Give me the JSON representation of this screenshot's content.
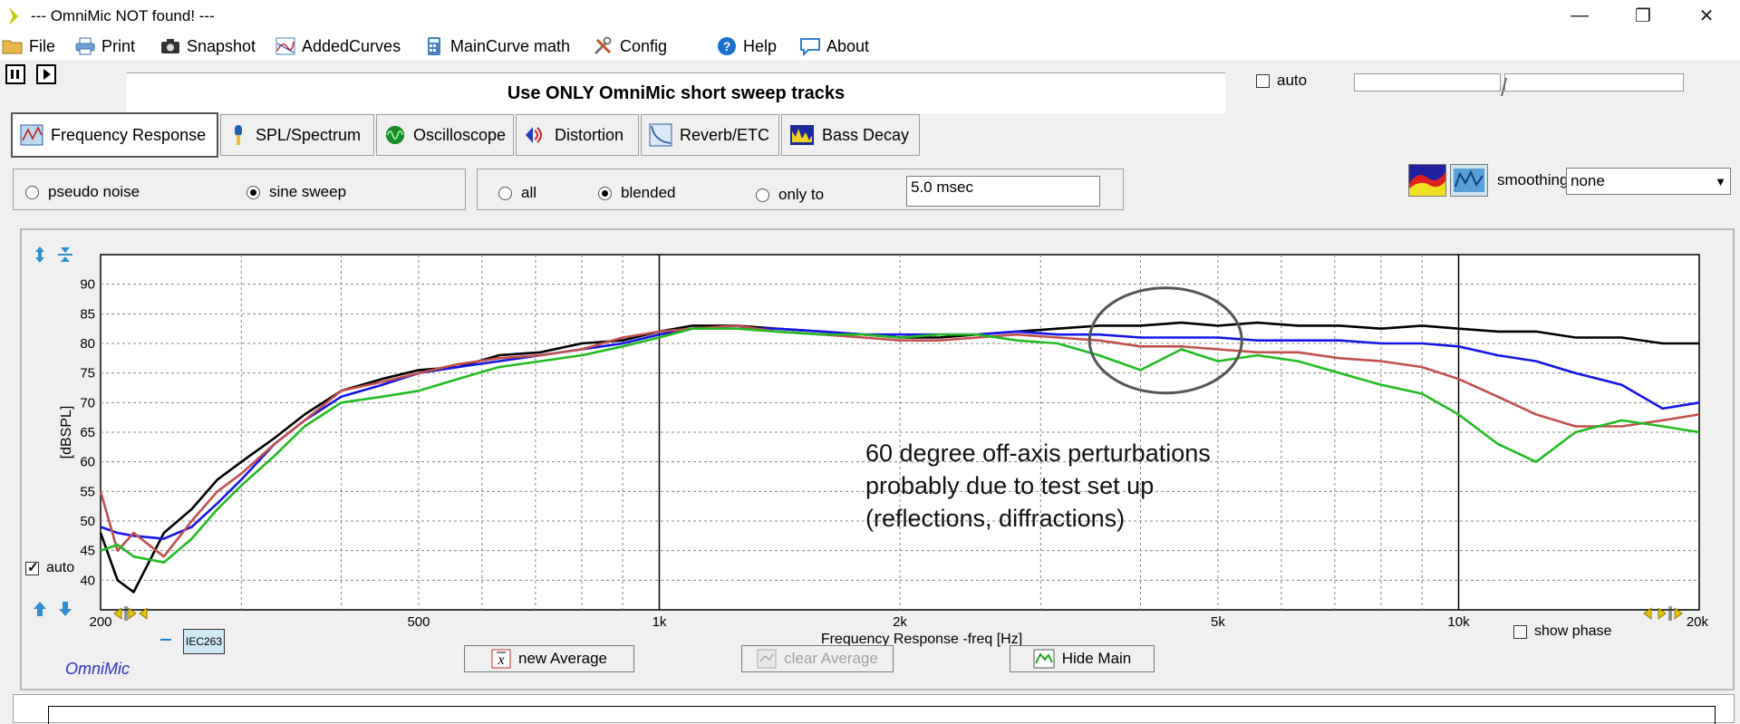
{
  "window": {
    "title": "--- OmniMic NOT found! ---"
  },
  "menu": [
    {
      "label": "File",
      "icon": "folder-icon"
    },
    {
      "label": "Print",
      "icon": "printer-icon"
    },
    {
      "label": "Snapshot",
      "icon": "camera-icon"
    },
    {
      "label": "AddedCurves",
      "icon": "curves-icon"
    },
    {
      "label": "MainCurve math",
      "icon": "calculator-icon"
    },
    {
      "label": "Config",
      "icon": "tools-icon"
    },
    {
      "label": "Help",
      "icon": "help-icon"
    },
    {
      "label": "About",
      "icon": "speech-bubble-icon"
    }
  ],
  "message": "Use ONLY OmniMic short sweep tracks",
  "top_auto_label": "auto",
  "tabs": [
    {
      "label": "Frequency Response",
      "active": true
    },
    {
      "label": "SPL/Spectrum"
    },
    {
      "label": "Oscilloscope"
    },
    {
      "label": "Distortion"
    },
    {
      "label": "Reverb/ETC"
    },
    {
      "label": "Bass Decay"
    }
  ],
  "signal": {
    "pseudo_noise": "pseudo noise",
    "sine_sweep": "sine sweep",
    "selected": "sine sweep"
  },
  "window_mode": {
    "all": "all",
    "blended": "blended",
    "only_to": "only to",
    "selected": "blended",
    "msec_value": "5.0 msec"
  },
  "smoothing": {
    "label": "smoothing",
    "value": "none"
  },
  "chart_panel": {
    "auto_label": "auto",
    "show_phase_label": "show phase",
    "legend_tag": "IEC263",
    "brand": "OmniMic",
    "buttons": {
      "new_average": "new Average",
      "clear_average": "clear Average",
      "hide_main": "Hide Main"
    }
  },
  "chart_data": {
    "type": "line",
    "xlabel": "Frequency Response -freq [Hz]",
    "ylabel": "[dBSPL]",
    "x_scale": "log",
    "xlim": [
      200,
      20000
    ],
    "ylim": [
      35,
      95
    ],
    "x_ticks": [
      {
        "value": 200,
        "label": "200"
      },
      {
        "value": 500,
        "label": "500"
      },
      {
        "value": 1000,
        "label": "1k"
      },
      {
        "value": 2000,
        "label": "2k"
      },
      {
        "value": 5000,
        "label": "5k"
      },
      {
        "value": 10000,
        "label": "10k"
      },
      {
        "value": 20000,
        "label": "20k"
      }
    ],
    "y_ticks": [
      40,
      45,
      50,
      55,
      60,
      65,
      70,
      75,
      80,
      85,
      90
    ],
    "grid": true,
    "annotation": [
      "60 degree off-axis perturbations",
      "probably due to test set up",
      "(reflections, diffractions)"
    ],
    "series": [
      {
        "color": "#000000",
        "x": [
          200,
          210,
          220,
          240,
          260,
          280,
          300,
          330,
          360,
          400,
          450,
          500,
          560,
          630,
          710,
          800,
          900,
          1000,
          1100,
          1250,
          1400,
          1600,
          1800,
          2000,
          2240,
          2500,
          2800,
          3150,
          3550,
          4000,
          4500,
          5000,
          5600,
          6300,
          7100,
          8000,
          9000,
          10000,
          11200,
          12500,
          14000,
          16000,
          18000,
          20000
        ],
        "y": [
          48,
          40,
          38,
          48,
          52,
          57,
          60,
          64,
          68,
          72,
          74,
          75.5,
          76,
          78,
          78.5,
          80,
          80.5,
          82,
          83,
          83,
          82.5,
          82,
          81.5,
          81,
          81,
          81.5,
          82,
          82.5,
          83,
          83,
          83.5,
          83,
          83.5,
          83,
          83,
          82.5,
          83,
          82.5,
          82,
          82,
          81,
          81,
          80,
          80
        ]
      },
      {
        "color": "#1515e6",
        "x": [
          200,
          210,
          220,
          240,
          260,
          280,
          300,
          330,
          360,
          400,
          450,
          500,
          560,
          630,
          710,
          800,
          900,
          1000,
          1100,
          1250,
          1400,
          1600,
          1800,
          2000,
          2240,
          2500,
          2800,
          3150,
          3550,
          4000,
          4500,
          5000,
          5600,
          6300,
          7100,
          8000,
          9000,
          10000,
          11200,
          12500,
          14000,
          16000,
          18000,
          20000
        ],
        "y": [
          49,
          48,
          47.5,
          47,
          49,
          53,
          57,
          63,
          67,
          71,
          73,
          75,
          76,
          77,
          78,
          79,
          80,
          81.5,
          82.5,
          82.5,
          82.5,
          82,
          81.5,
          81.5,
          81.5,
          81.5,
          82,
          81.5,
          81.5,
          81,
          81,
          81,
          80.5,
          80.5,
          80.5,
          80,
          80,
          79.5,
          78,
          77,
          75,
          73,
          69,
          70
        ]
      },
      {
        "color": "#c0504d",
        "x": [
          200,
          210,
          220,
          240,
          260,
          280,
          300,
          330,
          360,
          400,
          450,
          500,
          560,
          630,
          710,
          800,
          900,
          1000,
          1100,
          1250,
          1400,
          1600,
          1800,
          2000,
          2240,
          2500,
          2800,
          3150,
          3550,
          4000,
          4500,
          5000,
          5600,
          6300,
          7100,
          8000,
          9000,
          10000,
          11200,
          12500,
          14000,
          16000,
          18000,
          20000
        ],
        "y": [
          55,
          45,
          48,
          44,
          50,
          55,
          58,
          63,
          67,
          72,
          73.5,
          75,
          76.5,
          77.5,
          78,
          79,
          81,
          82,
          82.5,
          83,
          82,
          81.5,
          81,
          80.5,
          80.5,
          81,
          81.5,
          81,
          80.5,
          79.5,
          79.5,
          79,
          78.5,
          78.5,
          77.5,
          77,
          76,
          74,
          71,
          68,
          66,
          66,
          67,
          68
        ]
      },
      {
        "color": "#22bb22",
        "x": [
          200,
          210,
          220,
          240,
          260,
          280,
          300,
          330,
          360,
          400,
          450,
          500,
          560,
          630,
          710,
          800,
          900,
          1000,
          1100,
          1250,
          1400,
          1600,
          1800,
          2000,
          2240,
          2500,
          2800,
          3150,
          3550,
          4000,
          4500,
          5000,
          5600,
          6300,
          7100,
          8000,
          9000,
          10000,
          11200,
          12500,
          14000,
          16000,
          18000,
          20000
        ],
        "y": [
          45,
          46,
          44,
          43,
          47,
          52,
          56,
          61,
          66,
          70,
          71,
          72,
          74,
          76,
          77,
          78,
          79.5,
          81,
          82.5,
          82.5,
          82,
          81.5,
          81.5,
          81,
          81.5,
          81.5,
          80.5,
          80,
          78,
          75.5,
          79,
          77,
          78,
          77,
          75,
          73,
          71.5,
          68,
          63,
          60,
          65,
          67,
          66,
          65
        ]
      }
    ]
  }
}
